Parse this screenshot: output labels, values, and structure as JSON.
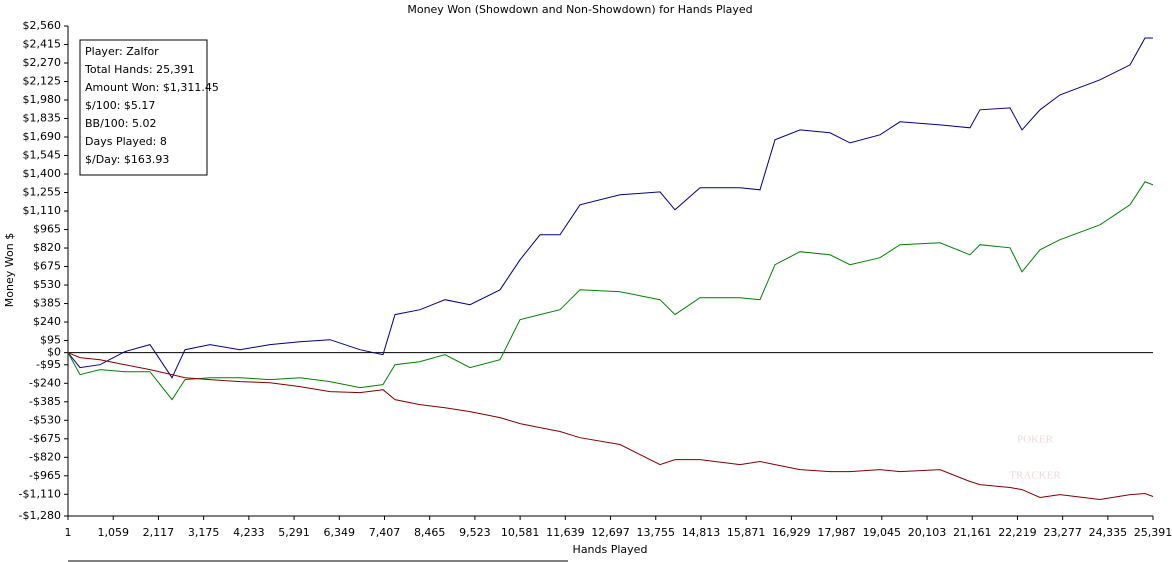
{
  "chart_data": {
    "type": "line",
    "title": "Money Won (Showdown and Non-Showdown) for Hands Played",
    "x_label": "Hands Played",
    "y_label": "Money Won $",
    "annotations": [
      "Player: Zalfor",
      "Total Hands: 25,391",
      "Amount Won: $1,311.45",
      "$/100: $5.17",
      "BB/100: 5.02",
      "Days Played: 8",
      "$/Day: $163.93"
    ],
    "watermark": [
      "POKER",
      "TRACKER"
    ],
    "x": [
      1,
      282,
      750,
      1335,
      1920,
      2435,
      2739,
      3324,
      4026,
      4728,
      5430,
      6132,
      6834,
      7372,
      7653,
      8238,
      8823,
      9408,
      10110,
      10578,
      11046,
      11514,
      11982,
      12918,
      13854,
      14205,
      14790,
      15726,
      16194,
      16545,
      17130,
      17832,
      18300,
      19002,
      19470,
      20406,
      21108,
      21342,
      22044,
      22325,
      22746,
      23214,
      24150,
      24852,
      25203,
      25391
    ],
    "series": [
      {
        "color": "#000080",
        "values": [
          0,
          -117,
          -94,
          8,
          63,
          -196,
          23,
          63,
          23,
          63,
          86,
          102,
          23,
          -16,
          298,
          337,
          415,
          376,
          493,
          728,
          924,
          924,
          1159,
          1237,
          1260,
          1120,
          1292,
          1292,
          1276,
          1668,
          1746,
          1723,
          1644,
          1707,
          1809,
          1785,
          1762,
          1903,
          1918,
          1746,
          1903,
          2020,
          2138,
          2255,
          2466,
          2466
        ]
      },
      {
        "color": "#008000",
        "values": [
          0,
          -172,
          -133,
          -149,
          -149,
          -368,
          -211,
          -196,
          -196,
          -211,
          -196,
          -227,
          -274,
          -250,
          -94,
          -70,
          -16,
          -117,
          -55,
          258,
          298,
          337,
          493,
          478,
          415,
          298,
          431,
          431,
          415,
          689,
          791,
          767,
          689,
          744,
          846,
          861,
          767,
          846,
          822,
          634,
          806,
          885,
          1002,
          1159,
          1339,
          1315
        ]
      },
      {
        "color": "#800000",
        "values": [
          0,
          -39,
          -55,
          -94,
          -133,
          -172,
          -196,
          -211,
          -227,
          -235,
          -266,
          -305,
          -313,
          -290,
          -368,
          -407,
          -431,
          -462,
          -509,
          -556,
          -587,
          -618,
          -666,
          -720,
          -877,
          -838,
          -838,
          -877,
          -853,
          -877,
          -916,
          -932,
          -932,
          -916,
          -932,
          -916,
          -1010,
          -1034,
          -1057,
          -1073,
          -1135,
          -1112,
          -1151,
          -1112,
          -1104,
          -1127
        ]
      }
    ],
    "xlim": [
      1,
      25391
    ],
    "xticks": [
      1,
      {
        "value": 1059,
        "label": "1,059"
      },
      {
        "value": 2117,
        "label": "2,117"
      },
      {
        "value": 3175,
        "label": "3,175"
      },
      {
        "value": 4233,
        "label": "4,233"
      },
      {
        "value": 5291,
        "label": "5,291"
      },
      {
        "value": 6349,
        "label": "6,349"
      },
      {
        "value": 7407,
        "label": "7,407"
      },
      {
        "value": 8465,
        "label": "8,465"
      },
      {
        "value": 9523,
        "label": "9,523"
      },
      {
        "value": 10581,
        "label": "10,581"
      },
      {
        "value": 11639,
        "label": "11,639"
      },
      {
        "value": 12697,
        "label": "12,697"
      },
      {
        "value": 13755,
        "label": "13,755"
      },
      {
        "value": 14813,
        "label": "14,813"
      },
      {
        "value": 15871,
        "label": "15,871"
      },
      {
        "value": 16929,
        "label": "16,929"
      },
      {
        "value": 17987,
        "label": "17,987"
      },
      {
        "value": 19045,
        "label": "19,045"
      },
      {
        "value": 20103,
        "label": "20,103"
      },
      {
        "value": 21161,
        "label": "21,161"
      },
      {
        "value": 22219,
        "label": "22,219"
      },
      {
        "value": 23277,
        "label": "23,277"
      },
      {
        "value": 24335,
        "label": "24,335"
      },
      {
        "value": 25391,
        "label": "25,391"
      }
    ],
    "ylim": [
      -1280,
      2560
    ],
    "yticks": [
      {
        "value": 2560,
        "label": "$2,560"
      },
      {
        "value": 2415,
        "label": "$2,415"
      },
      {
        "value": 2270,
        "label": "$2,270"
      },
      {
        "value": 2125,
        "label": "$2,125"
      },
      {
        "value": 1980,
        "label": "$1,980"
      },
      {
        "value": 1835,
        "label": "$1,835"
      },
      {
        "value": 1690,
        "label": "$1,690"
      },
      {
        "value": 1545,
        "label": "$1,545"
      },
      {
        "value": 1400,
        "label": "$1,400"
      },
      {
        "value": 1255,
        "label": "$1,255"
      },
      {
        "value": 1110,
        "label": "$1,110"
      },
      {
        "value": 965,
        "label": "$965"
      },
      {
        "value": 820,
        "label": "$820"
      },
      {
        "value": 675,
        "label": "$675"
      },
      {
        "value": 530,
        "label": "$530"
      },
      {
        "value": 385,
        "label": "$385"
      },
      {
        "value": 240,
        "label": "$240"
      },
      {
        "value": 95,
        "label": "$95"
      },
      {
        "value": 0,
        "label": "$0"
      },
      {
        "value": -95,
        "label": "-$95"
      },
      {
        "value": -240,
        "label": "-$240"
      },
      {
        "value": -385,
        "label": "-$385"
      },
      {
        "value": -530,
        "label": "-$530"
      },
      {
        "value": -675,
        "label": "-$675"
      },
      {
        "value": -820,
        "label": "-$820"
      },
      {
        "value": -965,
        "label": "-$965"
      },
      {
        "value": -1110,
        "label": "-$1,110"
      },
      {
        "value": -1280,
        "label": "-$1,280"
      }
    ],
    "zero_line": true,
    "grid": false
  }
}
